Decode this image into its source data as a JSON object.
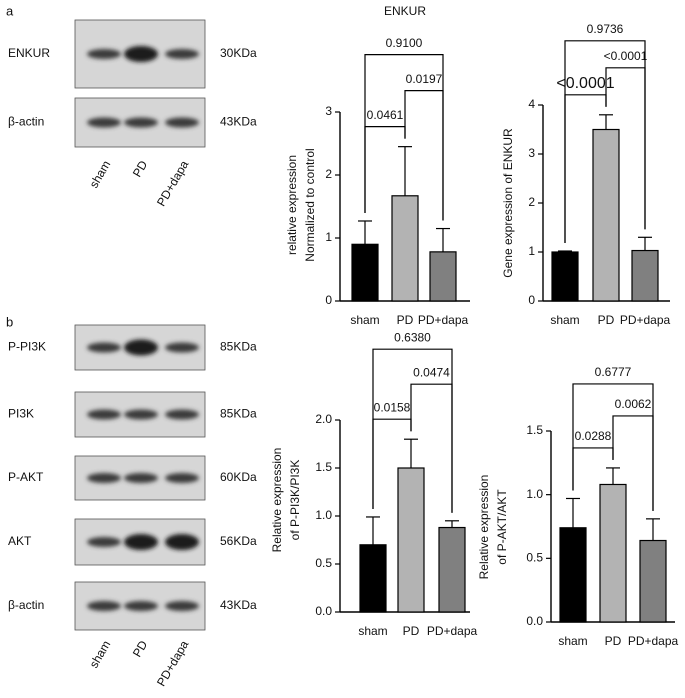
{
  "panel_labels": [
    "a",
    "b"
  ],
  "blots": [
    {
      "lanes": [
        "sham",
        "PD",
        "PD+dapa"
      ],
      "rows": [
        {
          "name": "ENKUR",
          "size": "30KDa"
        },
        {
          "name": "β-actin",
          "size": "43KDa"
        }
      ]
    },
    {
      "lanes": [
        "sham",
        "PD",
        "PD+dapa"
      ],
      "rows": [
        {
          "name": "P-PI3K",
          "size": "85KDa"
        },
        {
          "name": "PI3K",
          "size": "85KDa"
        },
        {
          "name": "P-AKT",
          "size": "60KDa"
        },
        {
          "name": "AKT",
          "size": "56KDa"
        },
        {
          "name": "β-actin",
          "size": "43KDa"
        }
      ]
    }
  ],
  "chart_data": [
    {
      "type": "bar",
      "title": "ENKUR",
      "ylabel": [
        "relative expression",
        "Normalized to control"
      ],
      "categories": [
        "sham",
        "PD",
        "PD+dapa"
      ],
      "values": [
        0.9,
        1.67,
        0.78
      ],
      "errors": [
        0.37,
        0.78,
        0.37
      ],
      "colors": [
        "#000000",
        "#b3b3b3",
        "#808080"
      ],
      "ylim": [
        0,
        3
      ],
      "yticks": [
        0,
        1,
        2,
        3
      ],
      "comparisons": [
        {
          "groups": [
            0,
            1
          ],
          "label": "0.0461"
        },
        {
          "groups": [
            1,
            2
          ],
          "label": "0.0197"
        },
        {
          "groups": [
            0,
            2
          ],
          "label": "0.9100"
        }
      ]
    },
    {
      "type": "bar",
      "ylabel": [
        "Gene expression of ENKUR"
      ],
      "categories": [
        "sham",
        "PD",
        "PD+dapa"
      ],
      "values": [
        1.0,
        3.5,
        1.03
      ],
      "errors": [
        0.02,
        0.3,
        0.27
      ],
      "colors": [
        "#000000",
        "#b3b3b3",
        "#808080"
      ],
      "ylim": [
        0,
        4
      ],
      "yticks": [
        0,
        1,
        2,
        3,
        4
      ],
      "comparisons": [
        {
          "groups": [
            0,
            1
          ],
          "label": "<0.0001"
        },
        {
          "groups": [
            1,
            2
          ],
          "label": "<0.0001"
        },
        {
          "groups": [
            0,
            2
          ],
          "label": "0.9736"
        }
      ]
    },
    {
      "type": "bar",
      "ylabel": [
        "Relative expression",
        "of P-PI3K/PI3K"
      ],
      "categories": [
        "sham",
        "PD",
        "PD+dapa"
      ],
      "values": [
        0.7,
        1.5,
        0.88
      ],
      "errors": [
        0.29,
        0.3,
        0.07
      ],
      "colors": [
        "#000000",
        "#b3b3b3",
        "#808080"
      ],
      "ylim": [
        0,
        2
      ],
      "yticks": [
        {
          "value": 0,
          "label": "0.0"
        },
        {
          "value": 0.5,
          "label": "0.5"
        },
        {
          "value": 1,
          "label": "1.0"
        },
        {
          "value": 1.5,
          "label": "1.5"
        },
        {
          "value": 2,
          "label": "2.0"
        }
      ],
      "comparisons": [
        {
          "groups": [
            0,
            1
          ],
          "label": "0.0158"
        },
        {
          "groups": [
            1,
            2
          ],
          "label": "0.0474"
        },
        {
          "groups": [
            0,
            2
          ],
          "label": "0.6380"
        }
      ]
    },
    {
      "type": "bar",
      "ylabel": [
        "Relative expression",
        "of P-AKT/AKT"
      ],
      "categories": [
        "sham",
        "PD",
        "PD+dapa"
      ],
      "values": [
        0.74,
        1.08,
        0.64
      ],
      "errors": [
        0.23,
        0.13,
        0.17
      ],
      "colors": [
        "#000000",
        "#b3b3b3",
        "#808080"
      ],
      "ylim": [
        0,
        1.5
      ],
      "yticks": [
        {
          "value": 0,
          "label": "0.0"
        },
        {
          "value": 0.5,
          "label": "0.5"
        },
        {
          "value": 1,
          "label": "1.0"
        },
        {
          "value": 1.5,
          "label": "1.5"
        }
      ],
      "comparisons": [
        {
          "groups": [
            0,
            1
          ],
          "label": "0.0288"
        },
        {
          "groups": [
            1,
            2
          ],
          "label": "0.0062"
        },
        {
          "groups": [
            0,
            2
          ],
          "label": "0.6777"
        }
      ]
    }
  ]
}
